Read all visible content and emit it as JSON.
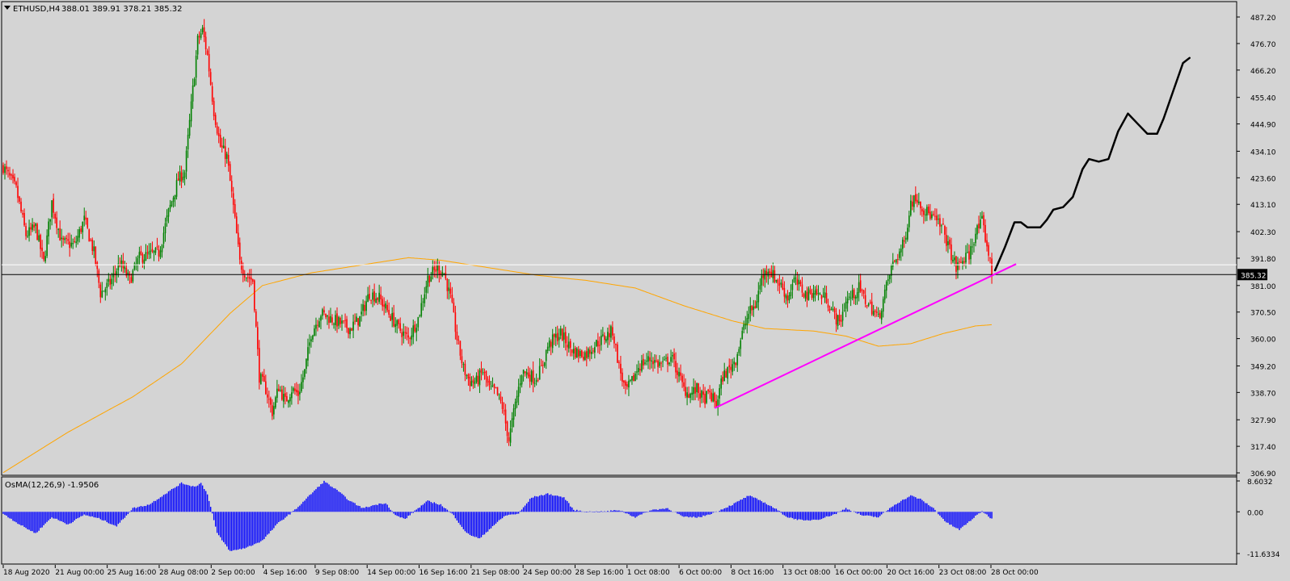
{
  "header": {
    "symbol": "ETHUSD,H4",
    "ohlc": "388.01 389.91 378.21 385.32"
  },
  "chart_data": {
    "type": "candlestick",
    "symbol": "ETHUSD",
    "timeframe": "H4",
    "ylim": [
      306.9,
      492.0
    ],
    "price_ticks": [
      "487.20",
      "476.70",
      "466.20",
      "455.40",
      "444.90",
      "434.10",
      "423.60",
      "413.10",
      "402.30",
      "391.80",
      "381.00",
      "370.50",
      "360.00",
      "349.20",
      "338.70",
      "327.90",
      "317.40",
      "306.90"
    ],
    "current_price": 385.32,
    "current_price_label": "385.32",
    "horizontal_line": 389.2,
    "x_ticks": [
      "18 Aug 2020",
      "21 Aug 00:00",
      "25 Aug 16:00",
      "28 Aug 08:00",
      "2 Sep 00:00",
      "4 Sep 16:00",
      "9 Sep 08:00",
      "14 Sep 00:00",
      "16 Sep 16:00",
      "21 Sep 08:00",
      "24 Sep 00:00",
      "28 Sep 16:00",
      "1 Oct 08:00",
      "6 Oct 00:00",
      "8 Oct 16:00",
      "13 Oct 08:00",
      "16 Oct 00:00",
      "20 Oct 16:00",
      "23 Oct 08:00",
      "28 Oct 00:00"
    ],
    "closes_key_points": [
      [
        0,
        428
      ],
      [
        8,
        419
      ],
      [
        14,
        401
      ],
      [
        20,
        404
      ],
      [
        25,
        390
      ],
      [
        30,
        414
      ],
      [
        36,
        398
      ],
      [
        44,
        397
      ],
      [
        50,
        407
      ],
      [
        56,
        394
      ],
      [
        60,
        378
      ],
      [
        66,
        382
      ],
      [
        72,
        390
      ],
      [
        78,
        383
      ],
      [
        84,
        392
      ],
      [
        90,
        393
      ],
      [
        96,
        394
      ],
      [
        102,
        410
      ],
      [
        108,
        423
      ],
      [
        112,
        426
      ],
      [
        116,
        452
      ],
      [
        120,
        478
      ],
      [
        123,
        482
      ],
      [
        126,
        472
      ],
      [
        130,
        450
      ],
      [
        134,
        436
      ],
      [
        138,
        432
      ],
      [
        142,
        412
      ],
      [
        146,
        390
      ],
      [
        150,
        385
      ],
      [
        154,
        383
      ],
      [
        158,
        345
      ],
      [
        162,
        340
      ],
      [
        166,
        331
      ],
      [
        170,
        341
      ],
      [
        174,
        335
      ],
      [
        178,
        340
      ],
      [
        182,
        338
      ],
      [
        186,
        347
      ],
      [
        190,
        362
      ],
      [
        196,
        370
      ],
      [
        202,
        368
      ],
      [
        208,
        366
      ],
      [
        214,
        364
      ],
      [
        220,
        368
      ],
      [
        226,
        378
      ],
      [
        232,
        376
      ],
      [
        238,
        370
      ],
      [
        244,
        364
      ],
      [
        250,
        360
      ],
      [
        256,
        368
      ],
      [
        262,
        384
      ],
      [
        268,
        388
      ],
      [
        272,
        386
      ],
      [
        276,
        376
      ],
      [
        280,
        360
      ],
      [
        284,
        348
      ],
      [
        288,
        343
      ],
      [
        292,
        343
      ],
      [
        296,
        347
      ],
      [
        300,
        340
      ],
      [
        304,
        339
      ],
      [
        308,
        333
      ],
      [
        312,
        320
      ],
      [
        316,
        334
      ],
      [
        320,
        347
      ],
      [
        324,
        346
      ],
      [
        328,
        344
      ],
      [
        332,
        348
      ],
      [
        336,
        357
      ],
      [
        340,
        360
      ],
      [
        344,
        362
      ],
      [
        348,
        358
      ],
      [
        352,
        355
      ],
      [
        356,
        354
      ],
      [
        360,
        354
      ],
      [
        364,
        357
      ],
      [
        368,
        359
      ],
      [
        372,
        361
      ],
      [
        376,
        363
      ],
      [
        380,
        349
      ],
      [
        384,
        339
      ],
      [
        388,
        343
      ],
      [
        392,
        349
      ],
      [
        396,
        351
      ],
      [
        400,
        352
      ],
      [
        404,
        350
      ],
      [
        408,
        350
      ],
      [
        412,
        353
      ],
      [
        416,
        347
      ],
      [
        420,
        340
      ],
      [
        424,
        338
      ],
      [
        428,
        340
      ],
      [
        432,
        336
      ],
      [
        436,
        338
      ],
      [
        440,
        334
      ],
      [
        444,
        345
      ],
      [
        448,
        348
      ],
      [
        452,
        352
      ],
      [
        456,
        362
      ],
      [
        460,
        370
      ],
      [
        464,
        373
      ],
      [
        468,
        384
      ],
      [
        472,
        388
      ],
      [
        476,
        384
      ],
      [
        480,
        381
      ],
      [
        484,
        376
      ],
      [
        488,
        383
      ],
      [
        492,
        380
      ],
      [
        496,
        377
      ],
      [
        500,
        379
      ],
      [
        504,
        377
      ],
      [
        508,
        376
      ],
      [
        512,
        370
      ],
      [
        516,
        366
      ],
      [
        520,
        375
      ],
      [
        524,
        377
      ],
      [
        528,
        380
      ],
      [
        532,
        375
      ],
      [
        536,
        372
      ],
      [
        540,
        368
      ],
      [
        544,
        378
      ],
      [
        548,
        388
      ],
      [
        552,
        393
      ],
      [
        556,
        398
      ],
      [
        560,
        414
      ],
      [
        564,
        416
      ],
      [
        568,
        411
      ],
      [
        572,
        409
      ],
      [
        576,
        406
      ],
      [
        580,
        403
      ],
      [
        584,
        395
      ],
      [
        588,
        388
      ],
      [
        592,
        391
      ],
      [
        596,
        393
      ],
      [
        600,
        402
      ],
      [
        604,
        406
      ],
      [
        608,
        394
      ],
      [
        610,
        385.32
      ]
    ],
    "candle_count": 611,
    "moving_average_key_points": [
      [
        0,
        307
      ],
      [
        40,
        323
      ],
      [
        80,
        337
      ],
      [
        110,
        350
      ],
      [
        140,
        370
      ],
      [
        160,
        381
      ],
      [
        190,
        386
      ],
      [
        220,
        389
      ],
      [
        250,
        392
      ],
      [
        270,
        391
      ],
      [
        300,
        388
      ],
      [
        330,
        385
      ],
      [
        360,
        383
      ],
      [
        390,
        380
      ],
      [
        420,
        373
      ],
      [
        450,
        367
      ],
      [
        470,
        364
      ],
      [
        500,
        363
      ],
      [
        520,
        361
      ],
      [
        540,
        357
      ],
      [
        560,
        358
      ],
      [
        580,
        362
      ],
      [
        600,
        365
      ],
      [
        610,
        365.5
      ]
    ],
    "trendline": [
      [
        439,
        332.5
      ],
      [
        625,
        389.5
      ]
    ],
    "projection_path": [
      [
        612,
        387
      ],
      [
        618,
        396
      ],
      [
        624,
        406
      ],
      [
        628,
        406
      ],
      [
        632,
        404
      ],
      [
        640,
        404
      ],
      [
        644,
        407
      ],
      [
        648,
        411
      ],
      [
        654,
        412
      ],
      [
        660,
        416
      ],
      [
        666,
        427
      ],
      [
        670,
        431
      ],
      [
        676,
        430
      ],
      [
        682,
        431
      ],
      [
        688,
        442
      ],
      [
        694,
        449
      ],
      [
        700,
        445
      ],
      [
        706,
        441
      ],
      [
        712,
        441
      ],
      [
        716,
        447
      ],
      [
        722,
        458
      ],
      [
        728,
        469
      ],
      [
        732,
        471
      ]
    ],
    "oscillator": {
      "label": "OsMA(12,26,9) -1.9506",
      "ylim": [
        -11.6334,
        8.6032
      ],
      "ticks": [
        "8.6032",
        "0.00",
        "-11.6334"
      ],
      "key_points": [
        [
          0,
          -0.5
        ],
        [
          10,
          -3.5
        ],
        [
          20,
          -6.0
        ],
        [
          30,
          -1.5
        ],
        [
          40,
          -3.5
        ],
        [
          50,
          -0.8
        ],
        [
          60,
          -2.0
        ],
        [
          70,
          -4.0
        ],
        [
          80,
          1.0
        ],
        [
          90,
          2.0
        ],
        [
          100,
          5.0
        ],
        [
          110,
          8.0
        ],
        [
          118,
          7.0
        ],
        [
          122,
          8.0
        ],
        [
          126,
          5.0
        ],
        [
          132,
          -6.0
        ],
        [
          140,
          -11.0
        ],
        [
          150,
          -10.0
        ],
        [
          160,
          -8.0
        ],
        [
          170,
          -3.0
        ],
        [
          180,
          0.5
        ],
        [
          190,
          5.0
        ],
        [
          198,
          8.5
        ],
        [
          206,
          6.0
        ],
        [
          214,
          3.0
        ],
        [
          222,
          1.0
        ],
        [
          230,
          2.0
        ],
        [
          236,
          2.5
        ],
        [
          242,
          -1.0
        ],
        [
          248,
          -2.0
        ],
        [
          256,
          1.0
        ],
        [
          262,
          3.0
        ],
        [
          270,
          2.0
        ],
        [
          278,
          -1.0
        ],
        [
          286,
          -6.0
        ],
        [
          294,
          -7.5
        ],
        [
          302,
          -4.0
        ],
        [
          310,
          -1.0
        ],
        [
          318,
          -0.5
        ],
        [
          326,
          4.0
        ],
        [
          336,
          5.0
        ],
        [
          346,
          4.0
        ],
        [
          352,
          0.5
        ],
        [
          360,
          0.0
        ],
        [
          370,
          0.0
        ],
        [
          380,
          0.5
        ],
        [
          390,
          -1.5
        ],
        [
          400,
          0.5
        ],
        [
          410,
          1.0
        ],
        [
          420,
          -1.5
        ],
        [
          430,
          -1.5
        ],
        [
          440,
          0.0
        ],
        [
          450,
          2.0
        ],
        [
          460,
          4.5
        ],
        [
          468,
          3.0
        ],
        [
          476,
          1.0
        ],
        [
          484,
          -1.5
        ],
        [
          494,
          -2.5
        ],
        [
          504,
          -2.0
        ],
        [
          514,
          -0.5
        ],
        [
          520,
          1.0
        ],
        [
          530,
          -1.0
        ],
        [
          540,
          -1.5
        ],
        [
          550,
          2.0
        ],
        [
          560,
          4.5
        ],
        [
          566,
          3.5
        ],
        [
          574,
          1.0
        ],
        [
          582,
          -3.0
        ],
        [
          590,
          -5.0
        ],
        [
          598,
          -2.0
        ],
        [
          604,
          0.2
        ],
        [
          610,
          -1.95
        ]
      ]
    }
  }
}
